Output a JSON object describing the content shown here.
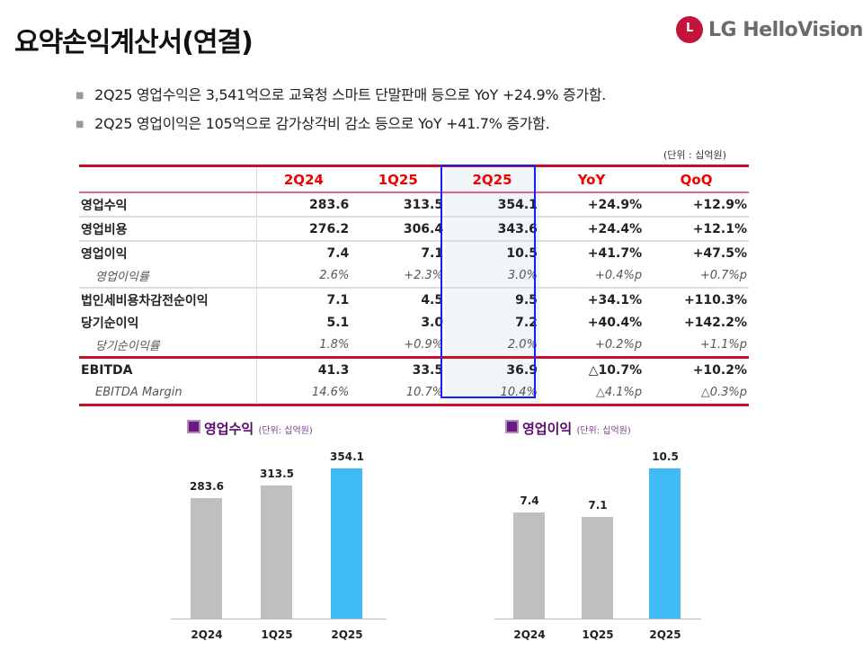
{
  "title": "요약손익계산서(연결)",
  "logo": "LG HelloVision",
  "bullets": [
    "2Q25 영업수익은 3,541억으로 교육청 스마트 단말판매 등으로 YoY +24.9% 증가함.",
    "2Q25 영업이익은 105억으로 감가상각비 감소 등으로 YoY +41.7% 증가함."
  ],
  "unit": "(단위 : 십억원)",
  "table": {
    "headers": [
      "2Q24",
      "1Q25",
      "2Q25",
      "YoY",
      "QoQ"
    ],
    "rows": [
      {
        "label": "영업수익",
        "values": [
          "283.6",
          "313.5",
          "354.1",
          "+24.9%",
          "+12.9%"
        ]
      },
      {
        "label": "영업비용",
        "values": [
          "276.2",
          "306.4",
          "343.6",
          "+24.4%",
          "+12.1%"
        ]
      },
      {
        "label": "영업이익",
        "values": [
          "7.4",
          "7.1",
          "10.5",
          "+41.7%",
          "+47.5%"
        ]
      },
      {
        "label": "영업이익률",
        "values": [
          "2.6%",
          "+2.3%",
          "3.0%",
          "+0.4%p",
          "+0.7%p"
        ]
      },
      {
        "label": "법인세비용차감전순이익",
        "values": [
          "7.1",
          "4.5",
          "9.5",
          "+34.1%",
          "+110.3%"
        ]
      },
      {
        "label": "당기순이익",
        "values": [
          "5.1",
          "3.0",
          "7.2",
          "+40.4%",
          "+142.2%"
        ]
      },
      {
        "label": "당기순이익률",
        "values": [
          "1.8%",
          "+0.9%",
          "2.0%",
          "+0.2%p",
          "+1.1%p"
        ]
      },
      {
        "label": "EBITDA",
        "values": [
          "41.3",
          "33.5",
          "36.9",
          "△10.7%",
          "+10.2%"
        ]
      },
      {
        "label": "EBITDA Margin",
        "values": [
          "14.6%",
          "10.7%",
          "10.4%",
          "△4.1%p",
          "△0.3%p"
        ]
      }
    ]
  },
  "chart_data": [
    {
      "type": "bar",
      "title": "영업수익",
      "unit": "(단위: 십억원)",
      "categories": [
        "2Q24",
        "1Q25",
        "2Q25"
      ],
      "values": [
        283.6,
        313.5,
        354.1
      ],
      "labels": [
        "283.6",
        "313.5",
        "354.1"
      ],
      "colors": [
        "#bfbfbf",
        "#bfbfbf",
        "#3fbcf7"
      ],
      "ylim": [
        0,
        354.1
      ]
    },
    {
      "type": "bar",
      "title": "영업이익",
      "unit": "(단위: 십억원)",
      "categories": [
        "2Q24",
        "1Q25",
        "2Q25"
      ],
      "values": [
        7.4,
        7.1,
        10.5
      ],
      "labels": [
        "7.4",
        "7.1",
        "10.5"
      ],
      "colors": [
        "#bfbfbf",
        "#bfbfbf",
        "#3fbcf7"
      ],
      "ylim": [
        0,
        10.5
      ]
    }
  ]
}
